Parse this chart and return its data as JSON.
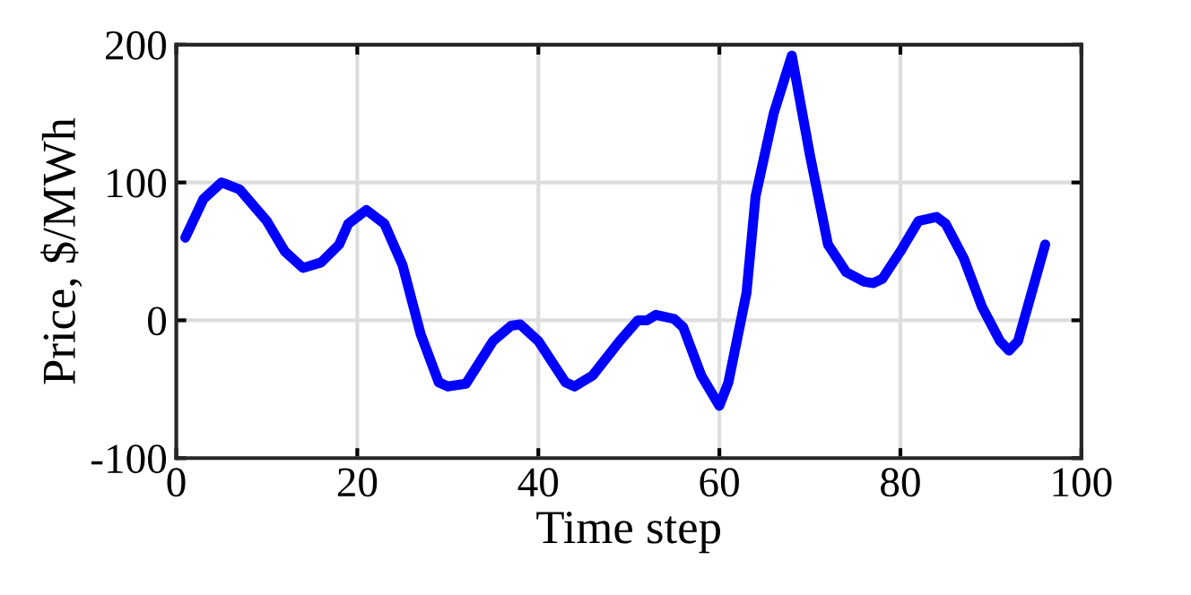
{
  "chart_data": {
    "type": "line",
    "xlabel": "Time step",
    "ylabel": "Price, $/MWh",
    "xlim": [
      0,
      100
    ],
    "xticks": [
      0,
      20,
      40,
      60,
      80,
      100
    ],
    "ylim": [
      -100,
      200
    ],
    "yticks": [
      -100,
      0,
      100,
      200
    ],
    "grid": true,
    "line_style": "solid",
    "marker": "none",
    "series": [
      {
        "color": "#0000ff",
        "x": [
          1,
          3,
          5,
          7,
          10,
          12,
          14,
          16,
          18,
          19,
          21,
          23,
          25,
          27,
          29,
          30,
          32,
          35,
          37,
          38,
          40,
          43,
          44,
          46,
          49,
          51,
          52,
          53,
          55,
          56,
          58,
          60,
          61,
          63,
          64,
          66,
          68,
          70,
          72,
          74,
          76,
          77,
          78,
          80,
          82,
          84,
          85,
          87,
          89,
          91,
          92,
          93,
          96
        ],
        "values": [
          60,
          88,
          100,
          95,
          72,
          50,
          38,
          42,
          55,
          70,
          80,
          70,
          40,
          -10,
          -45,
          -48,
          -46,
          -15,
          -4,
          -3,
          -15,
          -45,
          -48,
          -40,
          -15,
          0,
          0,
          4,
          1,
          -5,
          -40,
          -62,
          -45,
          20,
          90,
          150,
          192,
          120,
          55,
          35,
          28,
          27,
          30,
          50,
          72,
          75,
          70,
          45,
          10,
          -15,
          -22,
          -15,
          55
        ]
      }
    ]
  }
}
